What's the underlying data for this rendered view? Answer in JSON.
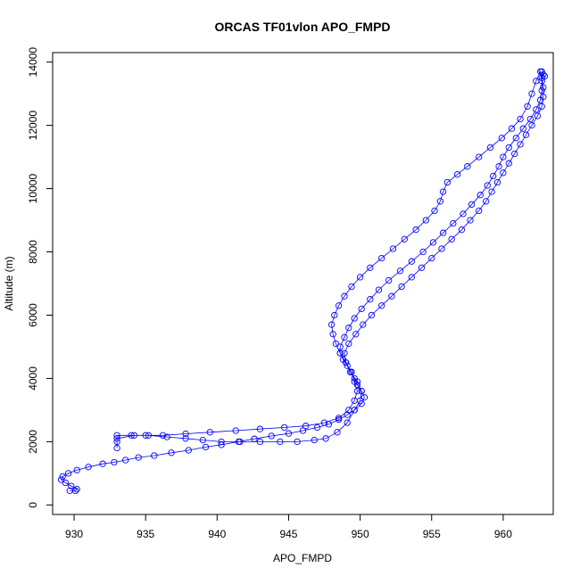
{
  "chart_data": {
    "type": "scatter",
    "title": "ORCAS TF01vlon APO_FMPD",
    "xlabel": "APO_FMPD",
    "ylabel": "Altitude (m)",
    "xlim": [
      928.5,
      963.5
    ],
    "ylim": [
      -300,
      14300
    ],
    "x_ticks": [
      930,
      935,
      940,
      945,
      950,
      955,
      960
    ],
    "y_ticks": [
      0,
      2000,
      4000,
      6000,
      8000,
      10000,
      12000,
      14000
    ],
    "marker": "open-circle",
    "color": "#0000ff",
    "connected": true,
    "series": [
      {
        "values": [
          [
            929.7,
            450
          ],
          [
            930.1,
            450
          ],
          [
            930.2,
            500
          ],
          [
            929.8,
            600
          ],
          [
            929.4,
            700
          ],
          [
            929.1,
            800
          ],
          [
            929.2,
            900
          ],
          [
            929.6,
            1000
          ],
          [
            930.2,
            1100
          ],
          [
            931.0,
            1200
          ],
          [
            932.0,
            1300
          ],
          [
            932.8,
            1350
          ],
          [
            933.6,
            1420
          ],
          [
            934.5,
            1500
          ],
          [
            935.6,
            1560
          ],
          [
            936.8,
            1650
          ],
          [
            938.0,
            1730
          ],
          [
            939.2,
            1830
          ],
          [
            940.3,
            1900
          ],
          [
            941.5,
            2000
          ],
          [
            942.6,
            2090
          ],
          [
            943.8,
            2180
          ],
          [
            945.0,
            2260
          ],
          [
            946.0,
            2350
          ],
          [
            947.0,
            2450
          ],
          [
            947.8,
            2550
          ],
          [
            948.5,
            2700
          ],
          [
            949.1,
            2850
          ],
          [
            949.6,
            3000
          ],
          [
            950.1,
            3200
          ],
          [
            950.3,
            3400
          ],
          [
            950.1,
            3600
          ],
          [
            949.8,
            3800
          ],
          [
            949.6,
            4000
          ],
          [
            949.4,
            4200
          ],
          [
            949.1,
            4400
          ],
          [
            948.8,
            4600
          ],
          [
            948.6,
            4800
          ],
          [
            948.6,
            5000
          ],
          [
            948.9,
            5300
          ],
          [
            949.2,
            5600
          ],
          [
            949.6,
            5900
          ],
          [
            950.1,
            6200
          ],
          [
            950.7,
            6500
          ],
          [
            951.3,
            6800
          ],
          [
            952.0,
            7100
          ],
          [
            952.8,
            7400
          ],
          [
            953.6,
            7700
          ],
          [
            954.4,
            8000
          ],
          [
            955.1,
            8300
          ],
          [
            955.8,
            8600
          ],
          [
            956.5,
            8900
          ],
          [
            957.2,
            9200
          ],
          [
            957.8,
            9500
          ],
          [
            958.4,
            9800
          ],
          [
            958.9,
            10100
          ],
          [
            959.3,
            10400
          ],
          [
            959.7,
            10700
          ],
          [
            960.0,
            11000
          ],
          [
            960.4,
            11300
          ],
          [
            960.9,
            11600
          ],
          [
            961.4,
            11900
          ],
          [
            961.9,
            12200
          ],
          [
            962.3,
            12500
          ],
          [
            962.6,
            12800
          ],
          [
            962.7,
            13100
          ],
          [
            962.7,
            13400
          ],
          [
            962.6,
            13700
          ],
          [
            962.3,
            13400
          ],
          [
            962.0,
            13000
          ],
          [
            961.7,
            12600
          ],
          [
            961.2,
            12200
          ],
          [
            960.6,
            11900
          ],
          [
            959.9,
            11600
          ],
          [
            959.1,
            11300
          ],
          [
            958.3,
            11000
          ],
          [
            957.5,
            10700
          ],
          [
            956.8,
            10450
          ],
          [
            956.1,
            10200
          ],
          [
            955.8,
            9900
          ],
          [
            955.6,
            9600
          ],
          [
            955.2,
            9300
          ],
          [
            954.6,
            9000
          ],
          [
            953.9,
            8700
          ],
          [
            953.1,
            8400
          ],
          [
            952.3,
            8100
          ],
          [
            951.5,
            7800
          ],
          [
            950.7,
            7500
          ],
          [
            950.0,
            7200
          ],
          [
            949.4,
            6900
          ],
          [
            948.9,
            6600
          ],
          [
            948.5,
            6300
          ],
          [
            948.2,
            6000
          ],
          [
            948.0,
            5700
          ],
          [
            948.1,
            5400
          ],
          [
            948.3,
            5100
          ],
          [
            948.6,
            4800
          ],
          [
            949.0,
            4500
          ],
          [
            949.4,
            4200
          ],
          [
            949.6,
            3900
          ],
          [
            949.8,
            3600
          ],
          [
            949.6,
            3300
          ],
          [
            949.2,
            3000
          ],
          [
            948.5,
            2750
          ],
          [
            947.5,
            2600
          ],
          [
            946.2,
            2500
          ],
          [
            944.7,
            2450
          ],
          [
            943.0,
            2400
          ],
          [
            941.3,
            2350
          ],
          [
            939.5,
            2300
          ],
          [
            937.8,
            2250
          ],
          [
            936.2,
            2200
          ],
          [
            935.0,
            2200
          ],
          [
            934.0,
            2200
          ],
          [
            933.0,
            2200
          ],
          [
            933.0,
            2000
          ],
          [
            933.0,
            1800
          ],
          [
            933.0,
            2100
          ],
          [
            934.2,
            2200
          ],
          [
            935.2,
            2200
          ],
          [
            936.5,
            2150
          ],
          [
            937.8,
            2100
          ],
          [
            939.0,
            2050
          ],
          [
            940.3,
            2000
          ],
          [
            941.6,
            2000
          ],
          [
            943.0,
            2000
          ],
          [
            944.4,
            2000
          ],
          [
            945.6,
            2000
          ],
          [
            946.8,
            2050
          ],
          [
            947.6,
            2100
          ],
          [
            948.4,
            2300
          ],
          [
            949.1,
            2600
          ],
          [
            949.6,
            3000
          ],
          [
            950.0,
            3300
          ],
          [
            950.1,
            3600
          ],
          [
            949.8,
            3900
          ],
          [
            949.3,
            4200
          ],
          [
            949.0,
            4500
          ],
          [
            948.9,
            4800
          ],
          [
            949.2,
            5100
          ],
          [
            949.7,
            5400
          ],
          [
            950.2,
            5700
          ],
          [
            950.8,
            6000
          ],
          [
            951.5,
            6300
          ],
          [
            952.2,
            6600
          ],
          [
            952.9,
            6900
          ],
          [
            953.6,
            7200
          ],
          [
            954.3,
            7500
          ],
          [
            955.0,
            7800
          ],
          [
            955.7,
            8100
          ],
          [
            956.4,
            8400
          ],
          [
            957.1,
            8700
          ],
          [
            957.7,
            9000
          ],
          [
            958.3,
            9300
          ],
          [
            958.8,
            9600
          ],
          [
            959.2,
            9900
          ],
          [
            959.6,
            10200
          ],
          [
            960.0,
            10500
          ],
          [
            960.4,
            10800
          ],
          [
            960.8,
            11100
          ],
          [
            961.2,
            11400
          ],
          [
            961.6,
            11700
          ],
          [
            962.0,
            12000
          ],
          [
            962.4,
            12300
          ],
          [
            962.7,
            12600
          ],
          [
            962.8,
            12900
          ],
          [
            962.8,
            13200
          ],
          [
            962.7,
            13500
          ],
          [
            962.8,
            13600
          ],
          [
            962.7,
            13700
          ],
          [
            962.9,
            13550
          ]
        ]
      }
    ]
  }
}
